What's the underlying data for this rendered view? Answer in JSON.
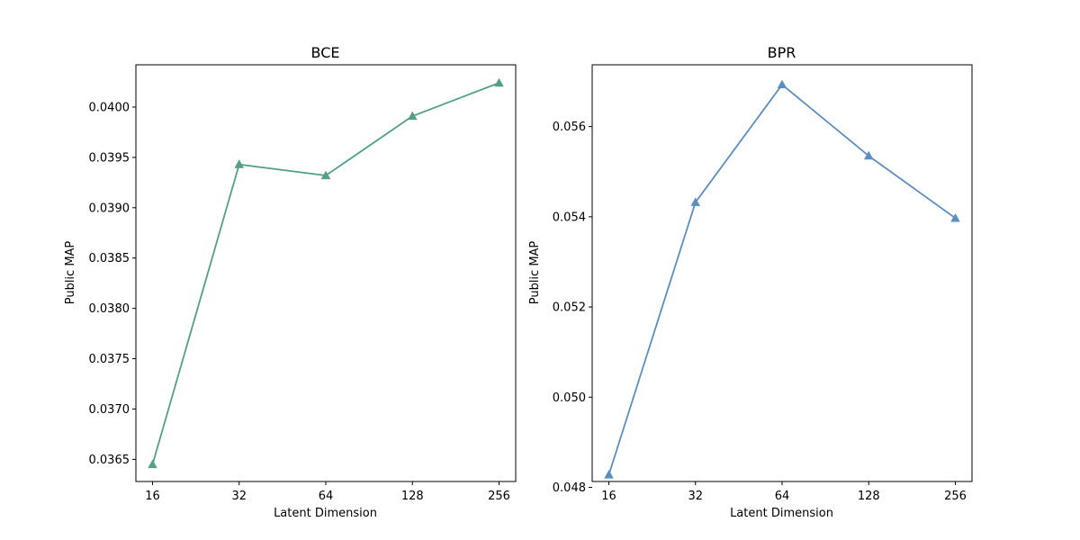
{
  "chart_data": [
    {
      "type": "line",
      "title": "BCE",
      "xlabel": "Latent Dimension",
      "ylabel": "Public MAP",
      "categories": [
        "16",
        "32",
        "64",
        "128",
        "256"
      ],
      "values": [
        0.03645,
        0.03943,
        0.03932,
        0.03991,
        0.04024
      ],
      "ylim": [
        0.03628,
        0.04042
      ],
      "yticks": [
        "0.0365",
        "0.0370",
        "0.0375",
        "0.0380",
        "0.0385",
        "0.0390",
        "0.0395",
        "0.0400"
      ],
      "color": "#52a182",
      "marker": "triangle",
      "grid": false
    },
    {
      "type": "line",
      "title": "BPR",
      "xlabel": "Latent Dimension",
      "ylabel": "Public MAP",
      "categories": [
        "16",
        "32",
        "64",
        "128",
        "256"
      ],
      "values": [
        0.04828,
        0.05432,
        0.05693,
        0.05535,
        0.05397
      ],
      "ylim": [
        0.04813,
        0.05737
      ],
      "yticks": [
        "0.048",
        "0.050",
        "0.052",
        "0.054",
        "0.056"
      ],
      "color": "#5b8fc2",
      "marker": "triangle",
      "grid": false
    }
  ]
}
